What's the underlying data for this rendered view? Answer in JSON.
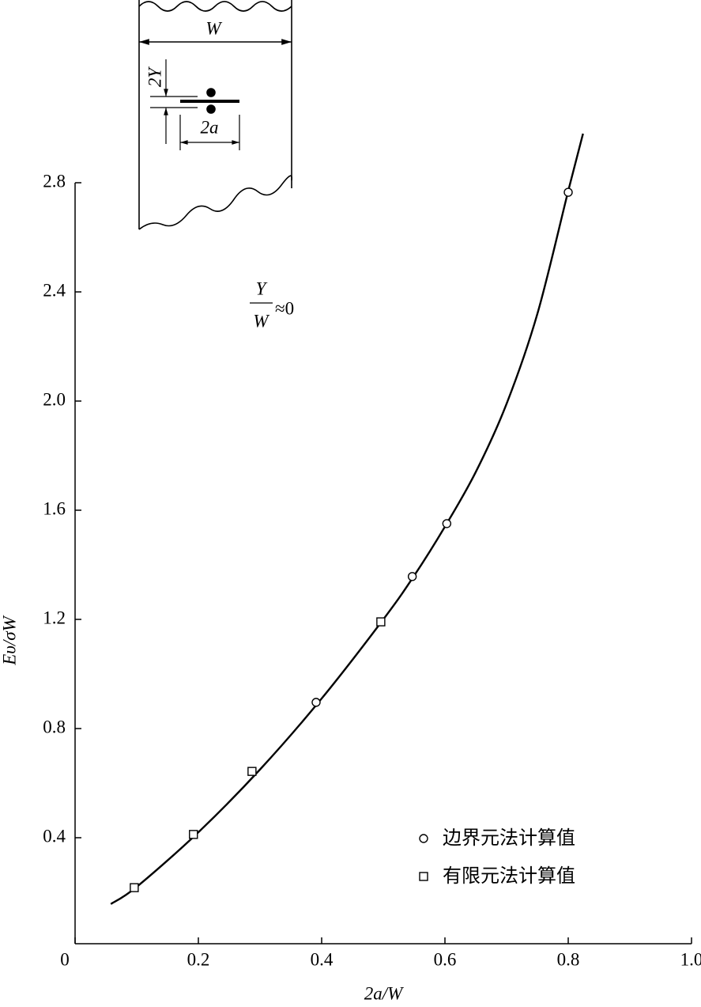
{
  "chart_data": {
    "type": "line",
    "x_label": "2a/W",
    "y_label": "Eυ/σW",
    "annotation": {
      "numerator": "Y",
      "denominator": "W",
      "text": "≈0"
    },
    "inset": {
      "width": "W",
      "gap": "2Y",
      "crack": "2a"
    },
    "xlim": [
      0,
      1
    ],
    "ylim": [
      0,
      2.8
    ],
    "xticks": [
      0,
      0.2,
      0.4,
      0.6,
      0.8,
      {
        "value": 1,
        "label": "1.0"
      }
    ],
    "yticks": [
      0.4,
      0.8,
      1.2,
      1.6,
      {
        "value": 2,
        "label": "2.0"
      },
      2.4,
      2.8
    ],
    "grid": false,
    "color": "#000000",
    "curve": {
      "x": [
        0.058,
        0.1,
        0.2,
        0.3,
        0.4,
        0.5,
        0.55,
        0.6,
        0.65,
        0.7,
        0.75,
        0.8,
        0.824
      ],
      "values": [
        0.157,
        0.22,
        0.42,
        0.65,
        0.91,
        1.2,
        1.36,
        1.54,
        1.74,
        1.99,
        2.32,
        2.77,
        2.98
      ]
    },
    "series": [
      {
        "name": "边界元法计算值",
        "marker": "circle",
        "x": [
          0.391,
          0.547,
          0.603,
          0.8
        ],
        "values": [
          0.896,
          1.357,
          1.551,
          2.765
        ]
      },
      {
        "name": "有限元法计算值",
        "marker": "square",
        "x": [
          0.096,
          0.192,
          0.287,
          0.496
        ],
        "values": [
          0.217,
          0.412,
          0.643,
          1.191
        ]
      }
    ]
  }
}
